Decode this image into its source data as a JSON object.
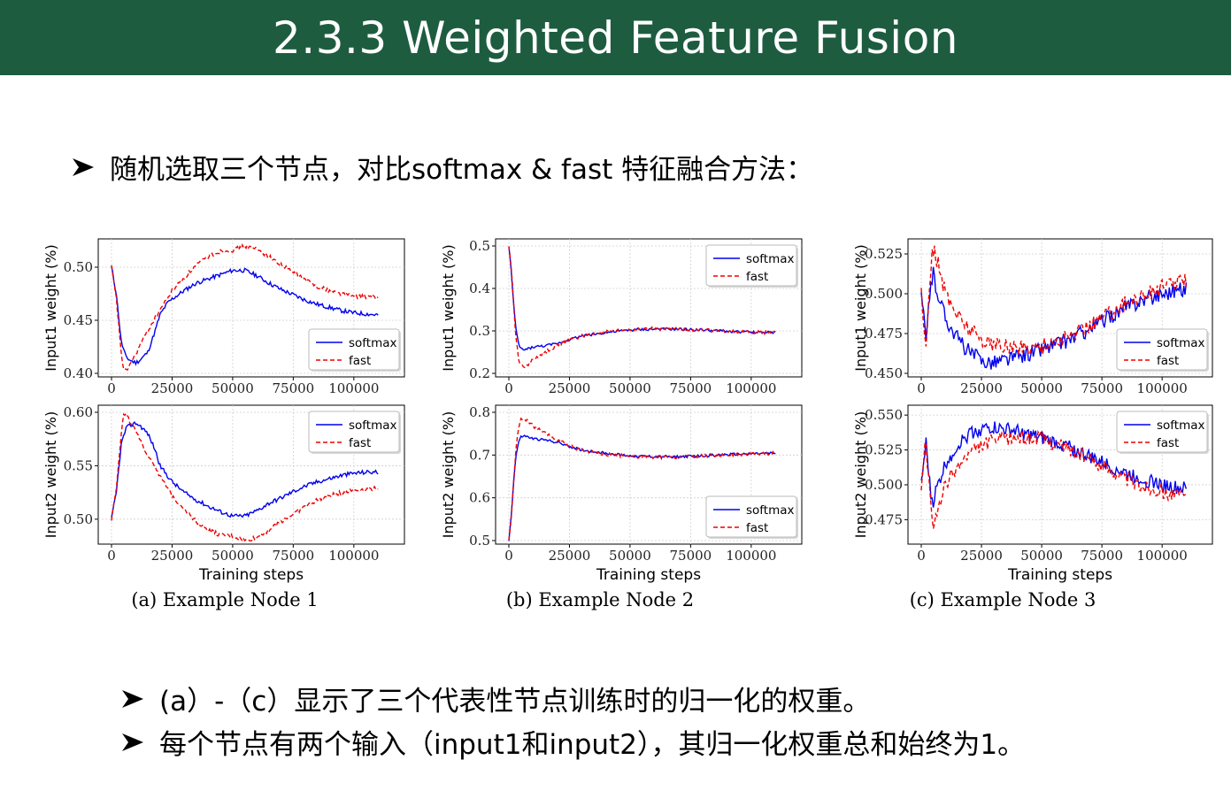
{
  "title": "2.3.3 Weighted Feature Fusion",
  "bullets": {
    "intro": "随机选取三个节点，对比softmax & fast 特征融合方法：",
    "note_a": "(a）-（c）显示了三个代表性节点训练时的归一化的权重。",
    "note_b": "每个节点有两个输入（input1和input2），其归一化权重总和始终为1。"
  },
  "icons": {
    "bullet": "arrow-bullet-icon"
  },
  "colors": {
    "title_bg": "#1e5c40",
    "softmax": "#0000ee",
    "fast": "#ee0000"
  },
  "chart_data": [
    {
      "type": "line",
      "panel": "a-top",
      "xlabel": "",
      "ylabel": "Input1 weight (%)",
      "xlim": [
        0,
        110000
      ],
      "ylim": [
        0.4,
        0.52
      ],
      "xticks": [
        0,
        25000,
        50000,
        75000,
        100000
      ],
      "yticks": [
        0.4,
        0.45,
        0.5
      ],
      "ytick_labels": [
        "0.40",
        "0.45",
        "0.50"
      ],
      "legend": "lower-right",
      "series": [
        {
          "name": "softmax",
          "style": "solid",
          "noise": 0.002,
          "x": [
            0,
            2000,
            4000,
            6000,
            8000,
            10000,
            12000,
            15000,
            18000,
            20000,
            23000,
            25000,
            30000,
            35000,
            40000,
            45000,
            50000,
            55000,
            60000,
            65000,
            70000,
            75000,
            80000,
            85000,
            90000,
            95000,
            100000,
            105000,
            110000
          ],
          "y": [
            0.5,
            0.475,
            0.43,
            0.415,
            0.412,
            0.41,
            0.413,
            0.42,
            0.44,
            0.455,
            0.466,
            0.47,
            0.478,
            0.485,
            0.489,
            0.493,
            0.497,
            0.497,
            0.492,
            0.485,
            0.479,
            0.474,
            0.469,
            0.465,
            0.462,
            0.459,
            0.457,
            0.456,
            0.455
          ]
        },
        {
          "name": "fast",
          "style": "dashed",
          "noise": 0.002,
          "x": [
            0,
            2000,
            4000,
            5000,
            6000,
            8000,
            10000,
            12000,
            15000,
            18000,
            20000,
            23000,
            25000,
            30000,
            35000,
            40000,
            45000,
            50000,
            55000,
            60000,
            65000,
            70000,
            75000,
            80000,
            85000,
            90000,
            95000,
            100000,
            105000,
            110000
          ],
          "y": [
            0.5,
            0.47,
            0.42,
            0.403,
            0.402,
            0.41,
            0.418,
            0.428,
            0.44,
            0.452,
            0.46,
            0.47,
            0.478,
            0.49,
            0.502,
            0.51,
            0.515,
            0.516,
            0.52,
            0.517,
            0.51,
            0.502,
            0.495,
            0.488,
            0.482,
            0.478,
            0.475,
            0.473,
            0.472,
            0.471
          ]
        }
      ]
    },
    {
      "type": "line",
      "panel": "a-bottom",
      "xlabel": "Training steps",
      "ylabel": "Input2 weight (%)",
      "xlim": [
        0,
        110000
      ],
      "ylim": [
        0.48,
        0.6
      ],
      "xticks": [
        0,
        25000,
        50000,
        75000,
        100000
      ],
      "yticks": [
        0.5,
        0.55,
        0.6
      ],
      "ytick_labels": [
        "0.50",
        "0.55",
        "0.60"
      ],
      "legend": "upper-right",
      "series": [
        {
          "name": "softmax",
          "style": "solid",
          "noise": 0.002,
          "x": [
            0,
            2000,
            4000,
            6000,
            8000,
            10000,
            12000,
            15000,
            18000,
            20000,
            25000,
            30000,
            35000,
            40000,
            45000,
            50000,
            55000,
            60000,
            65000,
            70000,
            75000,
            80000,
            85000,
            90000,
            95000,
            100000,
            105000,
            110000
          ],
          "y": [
            0.5,
            0.525,
            0.57,
            0.585,
            0.588,
            0.59,
            0.587,
            0.58,
            0.565,
            0.55,
            0.535,
            0.525,
            0.518,
            0.512,
            0.507,
            0.503,
            0.503,
            0.508,
            0.515,
            0.52,
            0.526,
            0.531,
            0.535,
            0.538,
            0.541,
            0.543,
            0.544,
            0.544
          ]
        },
        {
          "name": "fast",
          "style": "dashed",
          "noise": 0.002,
          "x": [
            0,
            2000,
            4000,
            5000,
            6000,
            8000,
            10000,
            12000,
            15000,
            18000,
            20000,
            25000,
            30000,
            35000,
            40000,
            45000,
            50000,
            55000,
            60000,
            65000,
            70000,
            75000,
            80000,
            85000,
            90000,
            95000,
            100000,
            105000,
            110000
          ],
          "y": [
            0.5,
            0.53,
            0.58,
            0.597,
            0.598,
            0.59,
            0.582,
            0.572,
            0.56,
            0.55,
            0.54,
            0.522,
            0.51,
            0.498,
            0.49,
            0.485,
            0.484,
            0.48,
            0.483,
            0.49,
            0.498,
            0.505,
            0.512,
            0.518,
            0.522,
            0.525,
            0.527,
            0.528,
            0.529
          ]
        }
      ]
    },
    {
      "type": "line",
      "panel": "b-top",
      "xlabel": "",
      "ylabel": "Input1 weight (%)",
      "xlim": [
        0,
        110000
      ],
      "ylim": [
        0.2,
        0.5
      ],
      "xticks": [
        0,
        25000,
        50000,
        75000,
        100000
      ],
      "yticks": [
        0.2,
        0.3,
        0.4,
        0.5
      ],
      "ytick_labels": [
        "0.2",
        "0.3",
        "0.4",
        "0.5"
      ],
      "legend": "upper-right",
      "series": [
        {
          "name": "softmax",
          "style": "solid",
          "noise": 0.003,
          "x": [
            0,
            1000,
            2000,
            3000,
            4000,
            5000,
            6000,
            8000,
            10000,
            15000,
            20000,
            25000,
            30000,
            40000,
            50000,
            60000,
            70000,
            80000,
            90000,
            100000,
            110000
          ],
          "y": [
            0.5,
            0.44,
            0.36,
            0.3,
            0.27,
            0.258,
            0.255,
            0.258,
            0.262,
            0.265,
            0.27,
            0.28,
            0.288,
            0.296,
            0.302,
            0.304,
            0.304,
            0.302,
            0.299,
            0.297,
            0.296
          ]
        },
        {
          "name": "fast",
          "style": "dashed",
          "noise": 0.004,
          "x": [
            0,
            1000,
            2000,
            3000,
            4000,
            5000,
            6000,
            8000,
            10000,
            15000,
            20000,
            25000,
            30000,
            40000,
            50000,
            60000,
            70000,
            80000,
            90000,
            100000,
            110000
          ],
          "y": [
            0.5,
            0.45,
            0.36,
            0.28,
            0.235,
            0.218,
            0.215,
            0.222,
            0.232,
            0.25,
            0.265,
            0.278,
            0.288,
            0.298,
            0.303,
            0.306,
            0.305,
            0.302,
            0.299,
            0.297,
            0.296
          ]
        }
      ]
    },
    {
      "type": "line",
      "panel": "b-bottom",
      "xlabel": "Training steps",
      "ylabel": "Input2 weight (%)",
      "xlim": [
        0,
        110000
      ],
      "ylim": [
        0.5,
        0.8
      ],
      "xticks": [
        0,
        25000,
        50000,
        75000,
        100000
      ],
      "yticks": [
        0.5,
        0.6,
        0.7,
        0.8
      ],
      "ytick_labels": [
        "0.5",
        "0.6",
        "0.7",
        "0.8"
      ],
      "legend": "lower-right",
      "series": [
        {
          "name": "softmax",
          "style": "solid",
          "noise": 0.003,
          "x": [
            0,
            1000,
            2000,
            3000,
            4000,
            5000,
            6000,
            8000,
            10000,
            15000,
            20000,
            25000,
            30000,
            40000,
            50000,
            60000,
            70000,
            80000,
            90000,
            100000,
            110000
          ],
          "y": [
            0.5,
            0.56,
            0.64,
            0.7,
            0.73,
            0.742,
            0.745,
            0.742,
            0.738,
            0.735,
            0.73,
            0.72,
            0.712,
            0.704,
            0.698,
            0.696,
            0.696,
            0.698,
            0.701,
            0.703,
            0.704
          ]
        },
        {
          "name": "fast",
          "style": "dashed",
          "noise": 0.004,
          "x": [
            0,
            1000,
            2000,
            3000,
            4000,
            5000,
            6000,
            8000,
            10000,
            15000,
            20000,
            25000,
            30000,
            40000,
            50000,
            60000,
            70000,
            80000,
            90000,
            100000,
            110000
          ],
          "y": [
            0.5,
            0.55,
            0.64,
            0.72,
            0.765,
            0.782,
            0.785,
            0.778,
            0.768,
            0.75,
            0.735,
            0.722,
            0.712,
            0.702,
            0.697,
            0.694,
            0.695,
            0.698,
            0.701,
            0.703,
            0.704
          ]
        }
      ]
    },
    {
      "type": "line",
      "panel": "c-top",
      "xlabel": "",
      "ylabel": "Input1 weight (%)",
      "xlim": [
        0,
        110000
      ],
      "ylim": [
        0.45,
        0.53
      ],
      "xticks": [
        0,
        25000,
        50000,
        75000,
        100000
      ],
      "yticks": [
        0.45,
        0.475,
        0.5,
        0.525
      ],
      "ytick_labels": [
        "0.450",
        "0.475",
        "0.500",
        "0.525"
      ],
      "legend": "lower-right",
      "series": [
        {
          "name": "softmax",
          "style": "solid",
          "noise": 0.005,
          "x": [
            0,
            1000,
            2000,
            3000,
            4000,
            5000,
            6000,
            8000,
            10000,
            15000,
            20000,
            25000,
            30000,
            40000,
            50000,
            60000,
            70000,
            80000,
            90000,
            100000,
            105000,
            110000
          ],
          "y": [
            0.5,
            0.485,
            0.47,
            0.49,
            0.508,
            0.512,
            0.505,
            0.495,
            0.485,
            0.472,
            0.463,
            0.458,
            0.457,
            0.46,
            0.465,
            0.47,
            0.478,
            0.487,
            0.495,
            0.5,
            0.502,
            0.503
          ]
        },
        {
          "name": "fast",
          "style": "dashed",
          "noise": 0.005,
          "x": [
            0,
            1000,
            2000,
            3000,
            4000,
            5000,
            6000,
            8000,
            10000,
            15000,
            20000,
            25000,
            30000,
            40000,
            50000,
            60000,
            70000,
            80000,
            90000,
            100000,
            105000,
            110000
          ],
          "y": [
            0.5,
            0.48,
            0.47,
            0.495,
            0.518,
            0.528,
            0.525,
            0.512,
            0.5,
            0.487,
            0.478,
            0.472,
            0.468,
            0.466,
            0.467,
            0.472,
            0.48,
            0.49,
            0.498,
            0.504,
            0.507,
            0.508
          ]
        }
      ]
    },
    {
      "type": "line",
      "panel": "c-bottom",
      "xlabel": "Training steps",
      "ylabel": "Input2 weight (%)",
      "xlim": [
        0,
        110000
      ],
      "ylim": [
        0.46,
        0.552
      ],
      "xticks": [
        0,
        25000,
        50000,
        75000,
        100000
      ],
      "yticks": [
        0.475,
        0.5,
        0.525,
        0.55
      ],
      "ytick_labels": [
        "0.475",
        "0.500",
        "0.525",
        "0.550"
      ],
      "legend": "upper-right",
      "series": [
        {
          "name": "softmax",
          "style": "solid",
          "noise": 0.005,
          "x": [
            0,
            1000,
            2000,
            3000,
            4000,
            5000,
            6000,
            8000,
            10000,
            15000,
            20000,
            25000,
            30000,
            40000,
            50000,
            60000,
            70000,
            80000,
            90000,
            100000,
            105000,
            110000
          ],
          "y": [
            0.5,
            0.515,
            0.53,
            0.51,
            0.492,
            0.488,
            0.495,
            0.505,
            0.515,
            0.528,
            0.537,
            0.54,
            0.541,
            0.538,
            0.533,
            0.528,
            0.52,
            0.512,
            0.505,
            0.5,
            0.498,
            0.497
          ]
        },
        {
          "name": "fast",
          "style": "dashed",
          "noise": 0.005,
          "x": [
            0,
            1000,
            2000,
            3000,
            4000,
            5000,
            6000,
            8000,
            10000,
            15000,
            20000,
            25000,
            30000,
            40000,
            50000,
            60000,
            70000,
            80000,
            90000,
            100000,
            105000,
            110000
          ],
          "y": [
            0.5,
            0.52,
            0.53,
            0.505,
            0.482,
            0.472,
            0.475,
            0.488,
            0.5,
            0.513,
            0.522,
            0.528,
            0.532,
            0.534,
            0.533,
            0.527,
            0.518,
            0.509,
            0.5,
            0.495,
            0.493,
            0.492
          ]
        }
      ]
    }
  ],
  "captions": [
    "(a) Example Node 1",
    "(b) Example Node 2",
    "(c) Example Node 3"
  ],
  "x_tick_labels": [
    "0",
    "25000",
    "50000",
    "75000",
    "100000"
  ],
  "xlabel": "Training steps"
}
